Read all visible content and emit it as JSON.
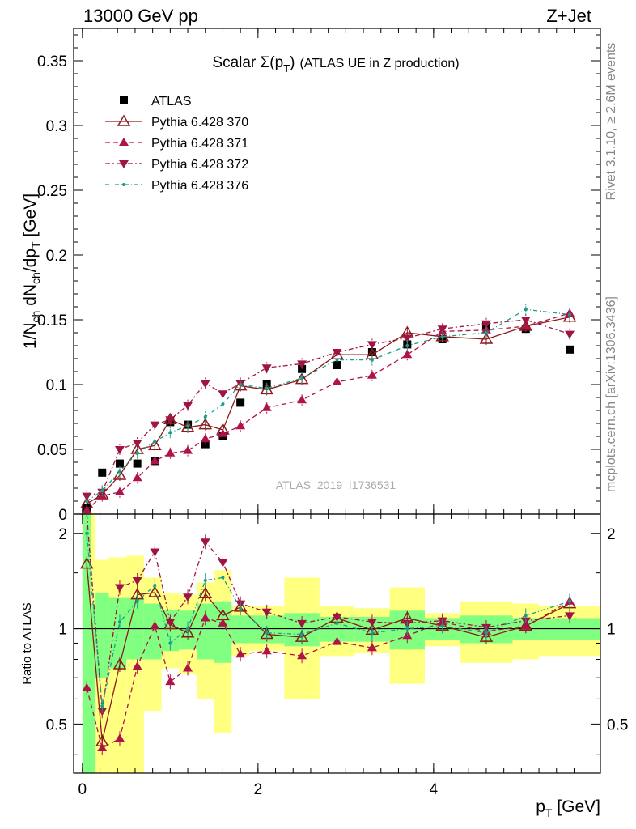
{
  "header": {
    "energy_label": "13000 GeV pp",
    "process_label": "Z+Jet"
  },
  "side_labels": {
    "rivet": "Rivet 3.1.10, ≥ 2.6M events",
    "mcplots": "mcplots.cern.ch [arXiv:1306.3436]"
  },
  "watermark": "ATLAS_2019_I1736531",
  "colors": {
    "atlas": "#000000",
    "p370": "#8b1a1a",
    "p371": "#b0124a",
    "p372": "#a01442",
    "p376": "#1a9e8a",
    "band_yellow": "#ffff80",
    "band_green": "#80ff80"
  },
  "chart_data": [
    {
      "type": "line",
      "title_main": "Scalar Σ(p",
      "title_sub": "T",
      "title_close": ")",
      "title_rest": "(ATLAS UE in Z production)",
      "ylabel": "1/N_ch dN_ch/dp_T [GeV]",
      "ylim": [
        0,
        0.375
      ],
      "yticks": [
        0,
        0.05,
        0.1,
        0.15,
        0.2,
        0.25,
        0.3,
        0.35
      ],
      "ytick_labels": [
        "0",
        "0.05",
        "0.1",
        "0.15",
        "0.2",
        "0.25",
        "0.3",
        "0.35"
      ],
      "xlim": [
        -0.1,
        5.9
      ],
      "x": [
        0.05,
        0.225,
        0.425,
        0.625,
        0.825,
        1.0,
        1.2,
        1.4,
        1.6,
        1.8,
        2.1,
        2.5,
        2.9,
        3.3,
        3.7,
        4.1,
        4.6,
        5.05,
        5.55
      ],
      "series": [
        {
          "name": "ATLAS",
          "marker": "square",
          "values": [
            0.005,
            0.032,
            0.039,
            0.039,
            0.041,
            0.071,
            0.069,
            0.054,
            0.06,
            0.086,
            0.1,
            0.112,
            0.115,
            0.125,
            0.131,
            0.135,
            0.145,
            0.143,
            0.127
          ]
        },
        {
          "name": "Pythia 6.428 370",
          "marker": "triangle-open",
          "line": "solid",
          "values": [
            0.008,
            0.015,
            0.03,
            0.05,
            0.053,
            0.073,
            0.067,
            0.069,
            0.065,
            0.099,
            0.096,
            0.104,
            0.123,
            0.123,
            0.14,
            0.137,
            0.135,
            0.145,
            0.152
          ]
        },
        {
          "name": "Pythia 6.428 371",
          "marker": "triangle-up",
          "line": "dashed",
          "values": [
            0.003,
            0.014,
            0.017,
            0.028,
            0.041,
            0.047,
            0.049,
            0.058,
            0.062,
            0.068,
            0.082,
            0.088,
            0.102,
            0.107,
            0.123,
            0.141,
            0.142,
            0.145,
            0.155
          ]
        },
        {
          "name": "Pythia 6.428 372",
          "marker": "triangle-down",
          "line": "dashdot",
          "values": [
            0.014,
            0.017,
            0.05,
            0.055,
            0.069,
            0.073,
            0.084,
            0.101,
            0.093,
            0.101,
            0.113,
            0.116,
            0.125,
            0.131,
            0.136,
            0.143,
            0.147,
            0.15,
            0.139
          ]
        },
        {
          "name": "Pythia 6.428 376",
          "marker": "dot",
          "line": "dashdotted",
          "values": [
            0.01,
            0.018,
            0.033,
            0.047,
            0.056,
            0.063,
            0.068,
            0.075,
            0.085,
            0.1,
            0.097,
            0.105,
            0.119,
            0.119,
            0.13,
            0.137,
            0.14,
            0.158,
            0.154
          ]
        }
      ]
    },
    {
      "type": "line",
      "ylabel": "Ratio to ATLAS",
      "xlabel": "p_T [GeV]",
      "ylim": [
        0.35,
        2.3
      ],
      "yticks": [
        0.5,
        1,
        2
      ],
      "ytick_labels": [
        "0.5",
        "1",
        "2"
      ],
      "xticks": [
        0,
        2,
        4
      ],
      "xtick_labels": [
        "0",
        "2",
        "4"
      ],
      "bin_edges": [
        0,
        0.1,
        0.15,
        0.3,
        0.5,
        0.7,
        0.9,
        1.1,
        1.3,
        1.5,
        1.7,
        1.9,
        2.3,
        2.7,
        3.1,
        3.5,
        3.9,
        4.3,
        4.9,
        5.2,
        5.9
      ],
      "band_yellow": [
        [
          0.35,
          2.3
        ],
        [
          0.35,
          2.3
        ],
        [
          0.35,
          1.65
        ],
        [
          0.35,
          1.68
        ],
        [
          0.35,
          1.7
        ],
        [
          0.55,
          1.45
        ],
        [
          0.75,
          1.3
        ],
        [
          0.72,
          1.28
        ],
        [
          0.6,
          1.4
        ],
        [
          0.47,
          1.53
        ],
        [
          0.82,
          1.18
        ],
        [
          0.85,
          1.18
        ],
        [
          0.6,
          1.45
        ],
        [
          0.82,
          1.18
        ],
        [
          0.84,
          1.16
        ],
        [
          0.67,
          1.35
        ],
        [
          0.88,
          1.12
        ],
        [
          0.78,
          1.22
        ],
        [
          0.8,
          1.2
        ],
        [
          0.82,
          1.18
        ]
      ],
      "band_green": [
        [
          0.35,
          2.3
        ],
        [
          0.35,
          1.2
        ],
        [
          0.7,
          1.3
        ],
        [
          0.75,
          1.25
        ],
        [
          0.8,
          1.25
        ],
        [
          0.8,
          1.2
        ],
        [
          0.85,
          1.15
        ],
        [
          0.86,
          1.14
        ],
        [
          0.8,
          1.2
        ],
        [
          0.78,
          1.22
        ],
        [
          0.9,
          1.1
        ],
        [
          0.9,
          1.1
        ],
        [
          0.88,
          1.12
        ],
        [
          0.91,
          1.09
        ],
        [
          0.91,
          1.09
        ],
        [
          0.86,
          1.14
        ],
        [
          0.92,
          1.08
        ],
        [
          0.9,
          1.1
        ],
        [
          0.92,
          1.08
        ],
        [
          0.92,
          1.08
        ]
      ],
      "series": [
        {
          "name": "Pythia 6.428 370",
          "values": [
            1.6,
            0.44,
            0.77,
            1.28,
            1.3,
            1.03,
            0.97,
            1.29,
            1.1,
            1.17,
            0.96,
            0.94,
            1.08,
            0.99,
            1.08,
            1.02,
            0.94,
            1.02,
            1.2
          ]
        },
        {
          "name": "Pythia 6.428 371",
          "values": [
            0.65,
            0.42,
            0.45,
            0.76,
            1.02,
            0.68,
            0.75,
            1.08,
            1.04,
            0.83,
            0.85,
            0.82,
            0.91,
            0.87,
            0.95,
            1.05,
            0.98,
            1.02,
            1.22
          ]
        },
        {
          "name": "Pythia 6.428 372",
          "values": [
            2.35,
            0.55,
            1.35,
            1.42,
            1.75,
            1.05,
            1.26,
            1.88,
            1.62,
            1.2,
            1.13,
            1.04,
            1.09,
            1.05,
            1.04,
            1.06,
            1.01,
            1.06,
            1.1
          ]
        },
        {
          "name": "Pythia 6.428 376",
          "values": [
            2.0,
            0.57,
            1.05,
            1.22,
            1.37,
            0.9,
            1.0,
            1.42,
            1.45,
            1.16,
            0.97,
            0.96,
            1.04,
            0.97,
            1.0,
            1.02,
            0.97,
            1.1,
            1.22
          ]
        }
      ]
    }
  ]
}
